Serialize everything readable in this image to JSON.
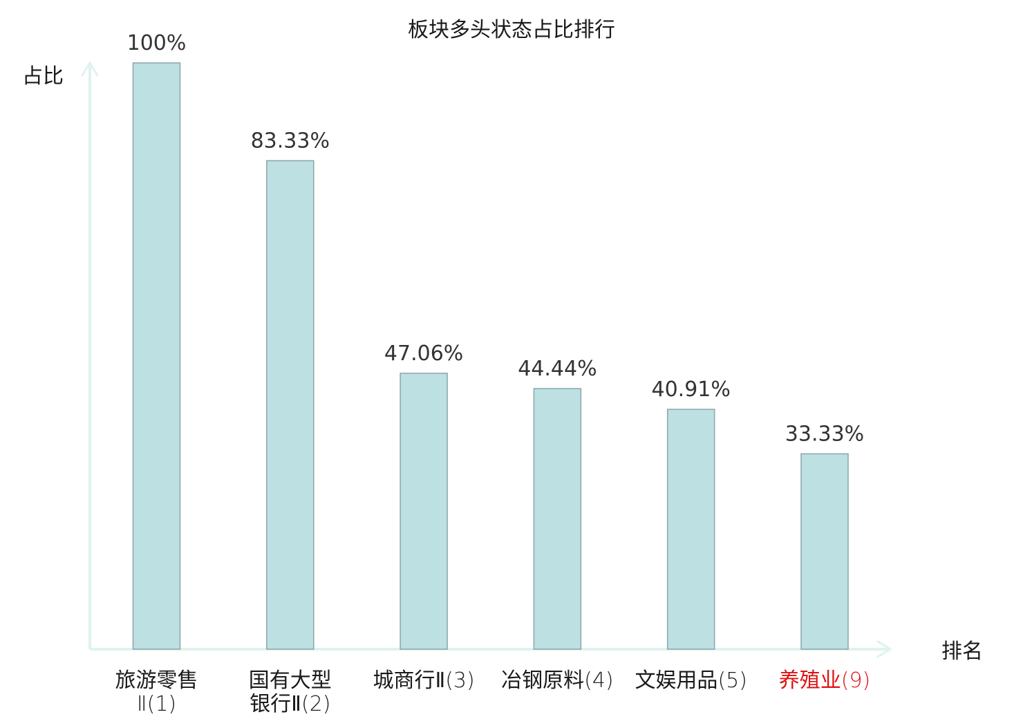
{
  "chart_data": {
    "type": "bar",
    "title": "板块多头状态占比排行",
    "ylabel": "占比",
    "xlabel": "排名",
    "ylim": [
      0,
      100
    ],
    "grid": false,
    "categories": [
      {
        "name_lines": [
          "旅游零售"
        ],
        "rank_text": "Ⅱ(1)",
        "rank_on_new_line": true,
        "highlight": false
      },
      {
        "name_lines": [
          "国有大型",
          "银行Ⅱ"
        ],
        "rank_text": "(2)",
        "rank_on_new_line": false,
        "highlight": false
      },
      {
        "name_lines": [
          "城商行Ⅱ"
        ],
        "rank_text": "(3)",
        "rank_on_new_line": false,
        "highlight": false
      },
      {
        "name_lines": [
          "冶钢原料"
        ],
        "rank_text": "(4)",
        "rank_on_new_line": false,
        "highlight": false
      },
      {
        "name_lines": [
          "文娱用品"
        ],
        "rank_text": "(5)",
        "rank_on_new_line": false,
        "highlight": false
      },
      {
        "name_lines": [
          "养殖业"
        ],
        "rank_text": "(9)",
        "rank_on_new_line": false,
        "highlight": true
      }
    ],
    "values": [
      100,
      83.33,
      47.06,
      44.44,
      40.91,
      33.33
    ],
    "value_labels": [
      "100%",
      "83.33%",
      "47.06%",
      "44.44%",
      "40.91%",
      "33.33%"
    ],
    "colors": {
      "bar_fill": "#bde0e2",
      "bar_stroke": "#8aa5a9",
      "axis": "#dff2ef",
      "label_text": "#1a1a1a",
      "highlight_text": "#e01010"
    }
  }
}
